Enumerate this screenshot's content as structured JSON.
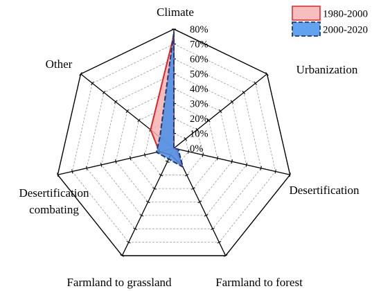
{
  "chart_data": {
    "type": "radar",
    "axes": [
      "Climate",
      "Urbanization",
      "Desertification",
      "Farmland to forest",
      "Farmland to grassland",
      "Desertification combating",
      "Other"
    ],
    "axes_display": [
      [
        "Climate"
      ],
      [
        "Urbanization"
      ],
      [
        "Desertification"
      ],
      [
        "Farmland to forest"
      ],
      [
        "Farmland to grassland"
      ],
      [
        "Desertification",
        "combating"
      ],
      [
        "Other"
      ]
    ],
    "ticks": [
      "0%",
      "10%",
      "20%",
      "30%",
      "40%",
      "50%",
      "60%",
      "70%",
      "80%"
    ],
    "rmax": 80,
    "grid": true,
    "legend_position": "top-right",
    "series": [
      {
        "name": "1980-2000",
        "values": [
          76,
          0,
          2,
          13,
          5,
          10,
          20
        ],
        "fill": "#f4b3b3",
        "fill_opacity": 0.85,
        "stroke": "#e8211f",
        "dashed": false
      },
      {
        "name": "2000-2020",
        "values": [
          78,
          0,
          3,
          14,
          8,
          12,
          12
        ],
        "fill": "#3f8eeb",
        "fill_opacity": 0.82,
        "stroke": "#1a3a78",
        "dashed": true
      }
    ]
  }
}
